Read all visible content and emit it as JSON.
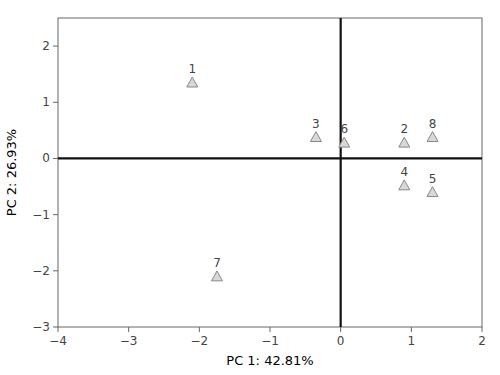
{
  "chart_data": {
    "type": "scatter",
    "x_label": "PC 1: 42.81%",
    "y_label": "PC 2: 26.93%",
    "x": [
      -2.1,
      0.9,
      -0.35,
      0.9,
      1.3,
      0.05,
      -1.75,
      1.3
    ],
    "values": [
      1.35,
      0.28,
      0.38,
      -0.48,
      -0.6,
      0.28,
      -2.1,
      0.38
    ],
    "labels": [
      "1",
      "2",
      "3",
      "4",
      "5",
      "6",
      "7",
      "8"
    ],
    "color": "#d8d8d8",
    "marker": "triangle",
    "hlines": [
      0
    ],
    "vlines": [
      0
    ],
    "xlim": [
      -4,
      2
    ],
    "ylim": [
      -3,
      2.5
    ],
    "xticks": [
      {
        "value": -4,
        "label": "−4"
      },
      {
        "value": -3,
        "label": "−3"
      },
      {
        "value": -2,
        "label": "−2"
      },
      {
        "value": -1,
        "label": "−1"
      },
      0,
      1,
      2
    ],
    "yticks": [
      {
        "value": -3,
        "label": "−3"
      },
      {
        "value": -2,
        "label": "−2"
      },
      {
        "value": -1,
        "label": "−1"
      },
      0,
      1,
      2
    ],
    "grid": false
  }
}
